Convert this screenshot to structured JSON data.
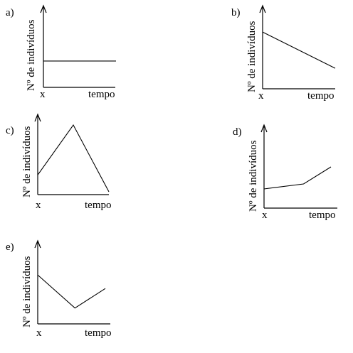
{
  "graphs": [
    {
      "option": "a)",
      "y_axis_label": "Nº de indivíduos",
      "x_origin_label": "x",
      "x_axis_label": "tempo",
      "shape": "constant",
      "curve": [
        {
          "t": 0,
          "n": 0.35
        },
        {
          "t": 1,
          "n": 0.35
        }
      ]
    },
    {
      "option": "b)",
      "y_axis_label": "Nº de indivíduos",
      "x_origin_label": "x",
      "x_axis_label": "tempo",
      "shape": "decreasing",
      "curve": [
        {
          "t": 0,
          "n": 0.72
        },
        {
          "t": 1,
          "n": 0.26
        }
      ]
    },
    {
      "option": "c)",
      "y_axis_label": "Nº de indivíduos",
      "x_origin_label": "x",
      "x_axis_label": "tempo",
      "shape": "rise-then-fall",
      "curve": [
        {
          "t": 0,
          "n": 0.28
        },
        {
          "t": 0.5,
          "n": 0.99
        },
        {
          "t": 1,
          "n": 0.04
        }
      ]
    },
    {
      "option": "d)",
      "y_axis_label": "Nº de indivíduos",
      "x_origin_label": "x",
      "x_axis_label": "tempo",
      "shape": "slow-then-fast-increase",
      "curve": [
        {
          "t": 0,
          "n": 0.27
        },
        {
          "t": 0.59,
          "n": 0.34
        },
        {
          "t": 1,
          "n": 0.58
        }
      ]
    },
    {
      "option": "e)",
      "y_axis_label": "Nº de indivíduos",
      "x_origin_label": "x",
      "x_axis_label": "tempo",
      "shape": "fall-then-rise",
      "curve": [
        {
          "t": 0,
          "n": 0.65
        },
        {
          "t": 0.55,
          "n": 0.21
        },
        {
          "t": 1,
          "n": 0.47
        }
      ]
    }
  ]
}
